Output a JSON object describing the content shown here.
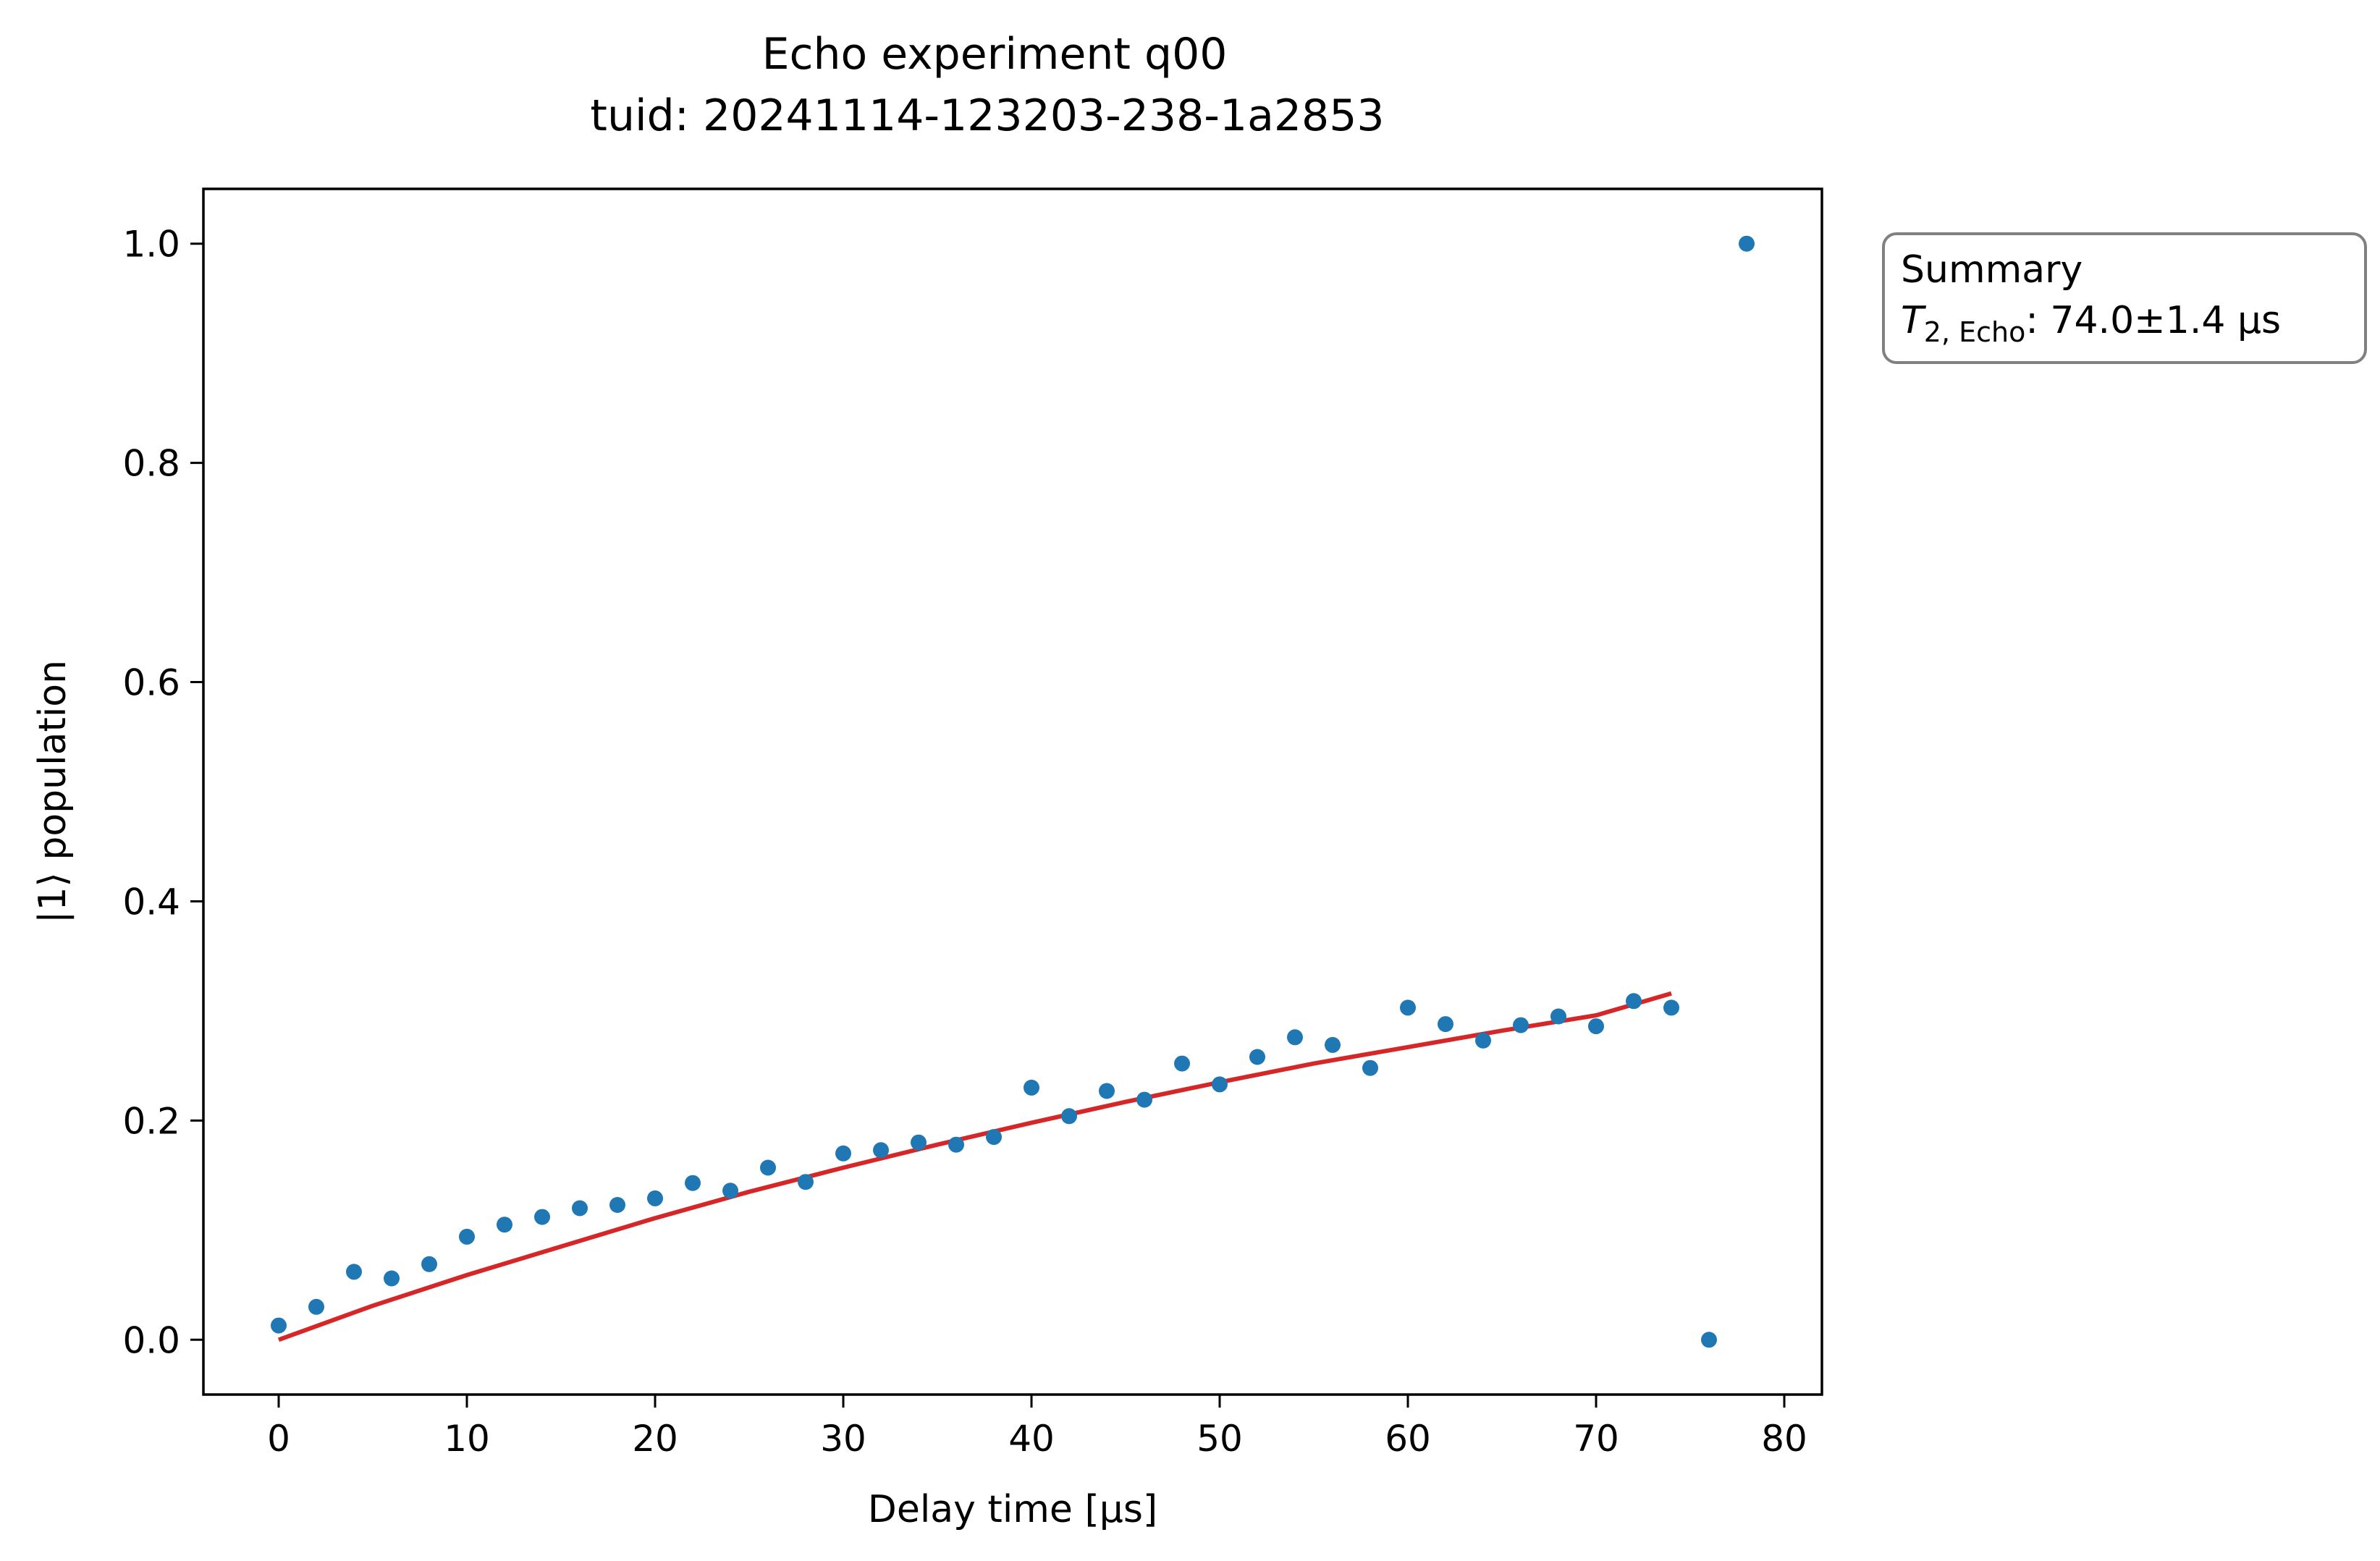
{
  "chart_data": {
    "type": "scatter",
    "title": "Echo experiment q00",
    "subtitle": "tuid: 20241114-123203-238-1a2853",
    "xlabel": "Delay time [µs]",
    "ylabel": "|1⟩ population",
    "xlim": [
      -4,
      82
    ],
    "ylim": [
      -0.05,
      1.05
    ],
    "xticks": [
      0,
      10,
      20,
      30,
      40,
      50,
      60,
      70,
      80
    ],
    "xtick_labels": [
      "0",
      "10",
      "20",
      "30",
      "40",
      "50",
      "60",
      "70",
      "80"
    ],
    "yticks": [
      0.0,
      0.2,
      0.4,
      0.6,
      0.8,
      1.0
    ],
    "ytick_labels": [
      "0.0",
      "0.2",
      "0.4",
      "0.6",
      "0.8",
      "1.0"
    ],
    "grid": false,
    "colors": {
      "data": "#1f77b4",
      "fit": "#d62728",
      "box_edge": "#808080"
    },
    "series": [
      {
        "kind": "scatter",
        "x": [
          0,
          2,
          4,
          6,
          8,
          10,
          12,
          14,
          16,
          18,
          20,
          22,
          24,
          26,
          28,
          30,
          32,
          34,
          36,
          38,
          40,
          42,
          44,
          46,
          48,
          50,
          52,
          54,
          56,
          58,
          60,
          62,
          64,
          66,
          68,
          70,
          72,
          74,
          76,
          78
        ],
        "y": [
          0.013,
          0.03,
          0.062,
          0.056,
          0.069,
          0.094,
          0.105,
          0.112,
          0.12,
          0.123,
          0.129,
          0.143,
          0.136,
          0.157,
          0.144,
          0.17,
          0.173,
          0.18,
          0.178,
          0.185,
          0.23,
          0.204,
          0.227,
          0.219,
          0.252,
          0.233,
          0.258,
          0.276,
          0.269,
          0.248,
          0.303,
          0.288,
          0.273,
          0.287,
          0.295,
          0.286,
          0.309,
          0.303,
          0.0,
          1.0
        ]
      },
      {
        "kind": "line",
        "x": [
          0,
          5,
          10,
          15,
          20,
          25,
          30,
          35,
          40,
          45,
          50,
          55,
          60,
          65,
          70,
          74
        ],
        "y": [
          0.0,
          0.031,
          0.059,
          0.085,
          0.111,
          0.135,
          0.157,
          0.178,
          0.198,
          0.217,
          0.235,
          0.252,
          0.267,
          0.282,
          0.296,
          0.316
        ]
      }
    ],
    "summary": {
      "heading": "Summary",
      "symbol": "T",
      "subscript": "2, Echo",
      "value": ": 74.0±1.4 µs"
    },
    "summary_placement": "outside-right-top"
  }
}
